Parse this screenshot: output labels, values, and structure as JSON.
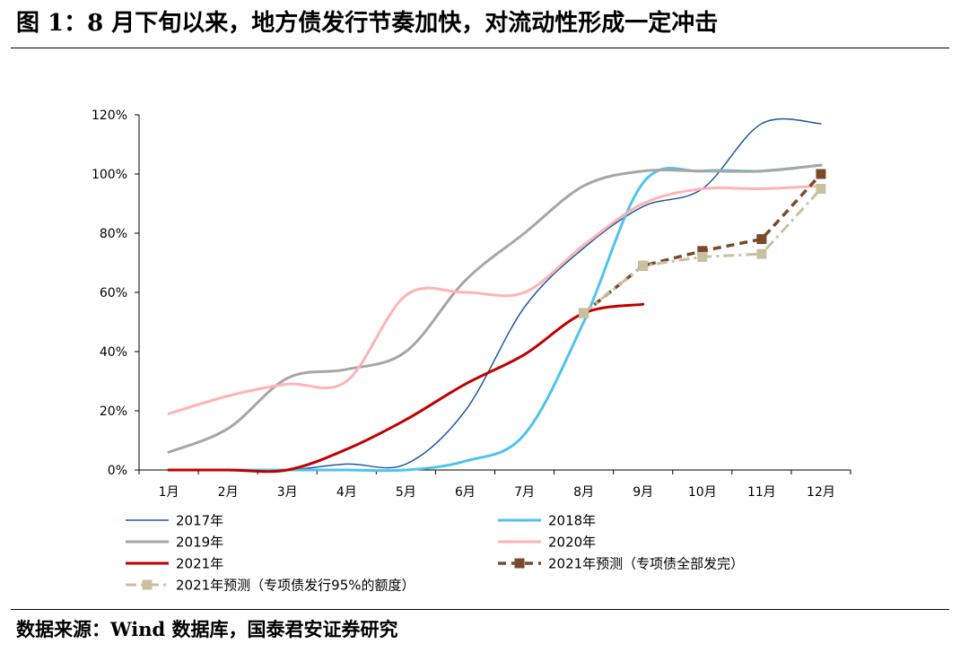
{
  "figure": {
    "title": "图 1：8 月下旬以来，地方债发行节奏加快，对流动性形成一定冲击",
    "source": "数据来源：Wind 数据库，国泰君安证券研究"
  },
  "chart_data": {
    "type": "line",
    "categories": [
      "1月",
      "2月",
      "3月",
      "4月",
      "5月",
      "6月",
      "7月",
      "8月",
      "9月",
      "10月",
      "11月",
      "12月"
    ],
    "ylim": [
      0,
      120
    ],
    "yticks": [
      "0%",
      "20%",
      "40%",
      "60%",
      "80%",
      "100%",
      "120%"
    ],
    "grid": false,
    "legend_position": "bottom",
    "series": [
      {
        "name": "2017年",
        "color": "#1f5aa0",
        "width": 1.5,
        "style": "solid",
        "values": [
          0,
          0,
          0,
          2,
          2,
          20,
          55,
          75,
          89,
          95,
          117,
          117
        ]
      },
      {
        "name": "2018年",
        "color": "#4fc3ee",
        "width": 3,
        "style": "solid",
        "values": [
          0,
          0,
          0,
          0,
          0,
          3,
          12,
          50,
          97,
          101,
          101,
          103
        ]
      },
      {
        "name": "2019年",
        "color": "#a6a6a6",
        "width": 3,
        "style": "solid",
        "values": [
          6,
          14,
          31,
          34,
          40,
          64,
          80,
          96,
          101,
          101,
          101,
          103
        ]
      },
      {
        "name": "2020年",
        "color": "#ffb3b3",
        "width": 3,
        "style": "solid",
        "values": [
          19,
          25,
          29,
          30,
          59,
          60,
          60,
          76,
          90,
          95,
          95,
          96
        ]
      },
      {
        "name": "2021年",
        "color": "#c00000",
        "width": 3,
        "style": "solid",
        "values": [
          0,
          0,
          0,
          7,
          17,
          29,
          39,
          53,
          56,
          null,
          null,
          null
        ]
      },
      {
        "name": "2021年预测（专项债全部发完）",
        "color": "#7a4a2a",
        "width": 3.5,
        "style": "dash",
        "marker": "square",
        "values": [
          null,
          null,
          null,
          null,
          null,
          null,
          null,
          53,
          69,
          74,
          78,
          100
        ]
      },
      {
        "name": "2021年预测（专项债发行95%的额度）",
        "color": "#c8c0a0",
        "width": 3,
        "style": "dashdot",
        "marker": "square",
        "values": [
          null,
          null,
          null,
          null,
          null,
          null,
          null,
          53,
          69,
          72,
          73,
          95
        ]
      }
    ]
  }
}
